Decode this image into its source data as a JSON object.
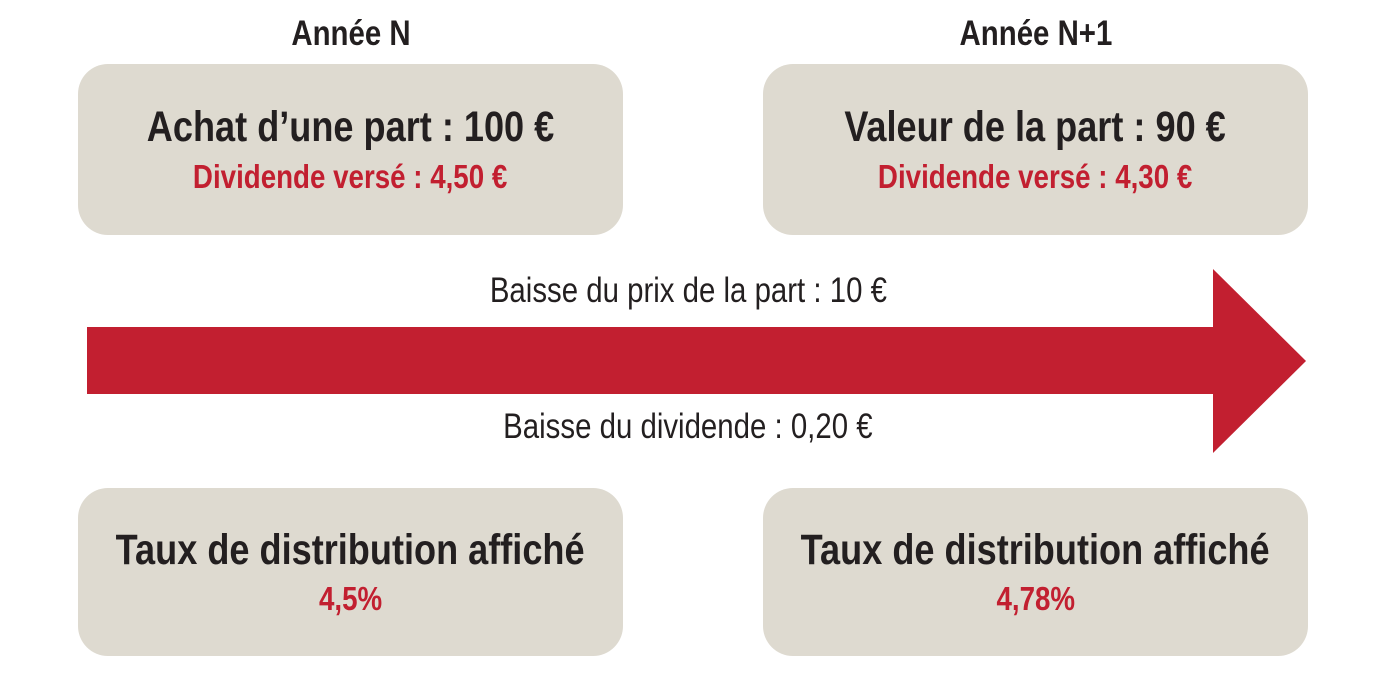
{
  "colors": {
    "accent_red": "#c21f30",
    "box_bg": "#dedad0",
    "text_black": "#231f20",
    "page_bg": "#ffffff"
  },
  "columns": {
    "year_n": {
      "title": "Année N",
      "top_box": {
        "main": "Achat d’une part : 100 €",
        "sub": "Dividende versé : 4,50 €"
      },
      "bottom_box": {
        "main": "Taux de distribution affiché",
        "sub": "4,5%"
      }
    },
    "year_n1": {
      "title": "Année N+1",
      "top_box": {
        "main": "Valeur de la part : 90 €",
        "sub": "Dividende versé : 4,30 €"
      },
      "bottom_box": {
        "main": "Taux de distribution affiché",
        "sub": "4,78%"
      }
    }
  },
  "arrow": {
    "label_above": "Baisse du prix de la part : 10 €",
    "label_below": "Baisse du dividende : 0,20 €"
  }
}
